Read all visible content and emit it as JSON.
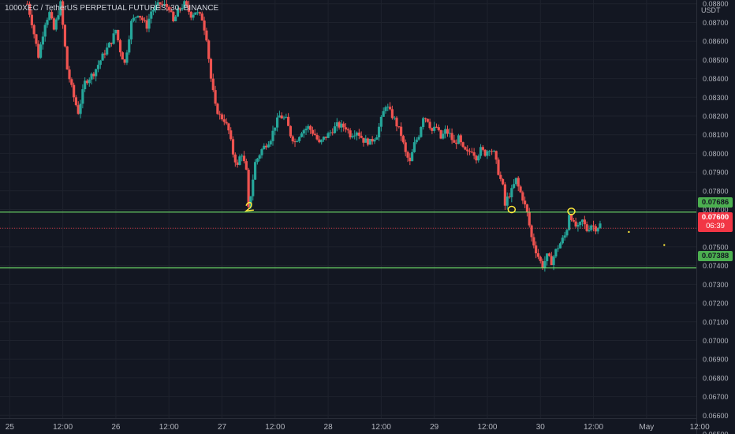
{
  "header": {
    "symbol_title": "1000XEC / TetherUS PERPETUAL FUTURES, 30, BINANCE",
    "currency": "USDT"
  },
  "price_tags": {
    "resistance": "0.07686",
    "last_price": "0.07600",
    "countdown": "06:39",
    "support": "0.07388"
  },
  "colors": {
    "background": "#131722",
    "up_candle": "#26a69a",
    "down_candle": "#ef5350",
    "level_line": "#6fe06a",
    "last_price": "#f23645",
    "annotation": "#ffeb3b"
  },
  "chart_data": {
    "type": "candlestick",
    "title": "1000XEC / TetherUS PERPETUAL FUTURES, 30, BINANCE",
    "timeframe": "30",
    "y_axis": {
      "unit": "USDT",
      "ylim": [
        0.065,
        0.0882
      ],
      "ticks": [
        "0.06500",
        "0.06600",
        "0.06700",
        "0.06800",
        "0.06900",
        "0.07000",
        "0.07100",
        "0.07200",
        "0.07300",
        "0.07400",
        "0.07500",
        "0.07600",
        "0.07700",
        "0.07800",
        "0.07900",
        "0.08000",
        "0.08100",
        "0.08200",
        "0.08300",
        "0.08400",
        "0.08500",
        "0.08600",
        "0.08700",
        "0.08800"
      ]
    },
    "x_axis": {
      "ticks": [
        {
          "label": "25",
          "t": 0
        },
        {
          "label": "12:00",
          "t": 12
        },
        {
          "label": "26",
          "t": 24
        },
        {
          "label": "12:00",
          "t": 36
        },
        {
          "label": "27",
          "t": 48
        },
        {
          "label": "12:00",
          "t": 60
        },
        {
          "label": "28",
          "t": 72
        },
        {
          "label": "12:00",
          "t": 84
        },
        {
          "label": "29",
          "t": 96
        },
        {
          "label": "12:00",
          "t": 108
        },
        {
          "label": "30",
          "t": 120
        },
        {
          "label": "12:00",
          "t": 132
        },
        {
          "label": "May",
          "t": 144
        },
        {
          "label": "12:00",
          "t": 156
        }
      ],
      "tlim": [
        -2.2,
        164
      ],
      "unit": "hours since 25 Apr 00:00"
    },
    "close_path": [
      [
        4,
        0.088
      ],
      [
        5,
        0.087
      ],
      [
        6.5,
        0.0852
      ],
      [
        8,
        0.087
      ],
      [
        9,
        0.0875
      ],
      [
        10,
        0.0866
      ],
      [
        11.5,
        0.088
      ],
      [
        13,
        0.0845
      ],
      [
        14.5,
        0.083
      ],
      [
        15.5,
        0.0822
      ],
      [
        17,
        0.0838
      ],
      [
        19,
        0.0843
      ],
      [
        21,
        0.0852
      ],
      [
        23,
        0.086
      ],
      [
        24,
        0.0866
      ],
      [
        25,
        0.0855
      ],
      [
        26,
        0.0848
      ],
      [
        27.5,
        0.087
      ],
      [
        29,
        0.0875
      ],
      [
        31,
        0.0868
      ],
      [
        32,
        0.0876
      ],
      [
        34,
        0.088
      ],
      [
        36,
        0.0878
      ],
      [
        37,
        0.087
      ],
      [
        38,
        0.0876
      ],
      [
        39.5,
        0.088
      ],
      [
        41,
        0.0874
      ],
      [
        42,
        0.0876
      ],
      [
        43.5,
        0.0872
      ],
      [
        44.5,
        0.0862
      ],
      [
        45.5,
        0.084
      ],
      [
        46.5,
        0.0825
      ],
      [
        47.5,
        0.082
      ],
      [
        48.5,
        0.0818
      ],
      [
        49.5,
        0.0812
      ],
      [
        50.5,
        0.08
      ],
      [
        51.5,
        0.0793
      ],
      [
        52,
        0.0798
      ],
      [
        52.5,
        0.08
      ],
      [
        53.5,
        0.079
      ],
      [
        54,
        0.077
      ],
      [
        54.5,
        0.0778
      ],
      [
        55.5,
        0.0795
      ],
      [
        57,
        0.0802
      ],
      [
        59,
        0.0808
      ],
      [
        60,
        0.0815
      ],
      [
        61,
        0.082
      ],
      [
        62.5,
        0.0818
      ],
      [
        63.5,
        0.081
      ],
      [
        64.5,
        0.0806
      ],
      [
        66,
        0.0812
      ],
      [
        67.5,
        0.0814
      ],
      [
        69,
        0.081
      ],
      [
        70,
        0.0805
      ],
      [
        71,
        0.0808
      ],
      [
        72,
        0.081
      ],
      [
        74,
        0.0815
      ],
      [
        76,
        0.0814
      ],
      [
        77,
        0.081
      ],
      [
        78.5,
        0.0812
      ],
      [
        80,
        0.0807
      ],
      [
        81.5,
        0.0806
      ],
      [
        83,
        0.081
      ],
      [
        84,
        0.0818
      ],
      [
        85,
        0.0826
      ],
      [
        86,
        0.0822
      ],
      [
        87,
        0.0818
      ],
      [
        88.5,
        0.081
      ],
      [
        89.5,
        0.08
      ],
      [
        90.5,
        0.0795
      ],
      [
        91.5,
        0.0805
      ],
      [
        92.5,
        0.081
      ],
      [
        93.5,
        0.082
      ],
      [
        94.5,
        0.0818
      ],
      [
        95.5,
        0.0812
      ],
      [
        96.5,
        0.0814
      ],
      [
        97.5,
        0.0808
      ],
      [
        98.5,
        0.0812
      ],
      [
        99.5,
        0.081
      ],
      [
        100.5,
        0.0805
      ],
      [
        101.5,
        0.0808
      ],
      [
        102.5,
        0.0802
      ],
      [
        103.5,
        0.08
      ],
      [
        104.5,
        0.0802
      ],
      [
        105.5,
        0.0798
      ],
      [
        106.5,
        0.0802
      ],
      [
        107.5,
        0.08
      ],
      [
        108.5,
        0.0803
      ],
      [
        109.5,
        0.08
      ],
      [
        110.5,
        0.079
      ],
      [
        111.5,
        0.0782
      ],
      [
        112,
        0.0772
      ],
      [
        112.5,
        0.0776
      ],
      [
        113.5,
        0.078
      ],
      [
        114.5,
        0.0786
      ],
      [
        115,
        0.0782
      ],
      [
        116,
        0.0776
      ],
      [
        117,
        0.0768
      ],
      [
        118,
        0.0755
      ],
      [
        119,
        0.0748
      ],
      [
        120,
        0.0742
      ],
      [
        120.5,
        0.074
      ],
      [
        121.5,
        0.0745
      ],
      [
        122.5,
        0.0742
      ],
      [
        123.5,
        0.0748
      ],
      [
        124.5,
        0.0752
      ],
      [
        125.5,
        0.0756
      ],
      [
        126,
        0.076
      ],
      [
        126.5,
        0.0768
      ],
      [
        127,
        0.0766
      ],
      [
        127.5,
        0.0762
      ],
      [
        128.5,
        0.076
      ],
      [
        129.5,
        0.0764
      ],
      [
        130.5,
        0.0759
      ],
      [
        131.5,
        0.0762
      ],
      [
        132.5,
        0.076
      ],
      [
        133.5,
        0.0762
      ]
    ],
    "levels": [
      {
        "price": 0.07686,
        "label": "0.07686"
      },
      {
        "price": 0.07388,
        "label": "0.07388"
      }
    ],
    "last_price": {
      "price": 0.076,
      "label": "0.07600",
      "countdown": "06:39"
    },
    "annotations": [
      {
        "shape": "scribble",
        "t": 54.2,
        "price": 0.07714
      },
      {
        "shape": "circle",
        "t": 113.5,
        "price": 0.077
      },
      {
        "shape": "circle",
        "t": 127,
        "price": 0.0769
      }
    ],
    "marks": [
      {
        "t": 140,
        "price": 0.0758
      },
      {
        "t": 148,
        "price": 0.0751
      }
    ]
  }
}
